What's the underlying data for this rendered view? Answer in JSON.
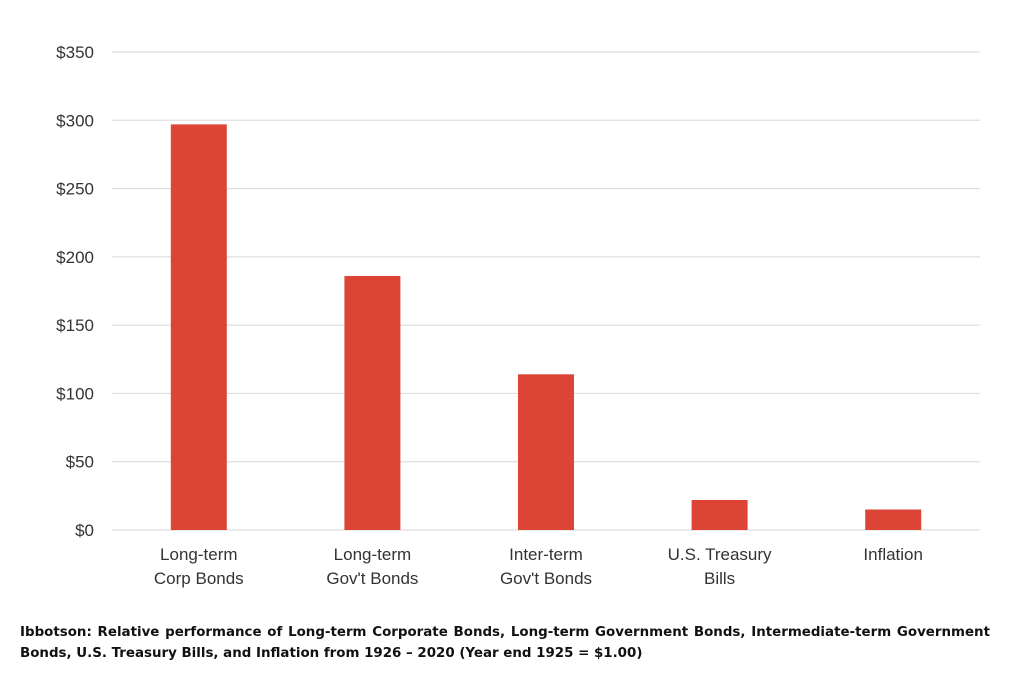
{
  "chart_data": {
    "type": "bar",
    "categories": [
      [
        "Long-term",
        "Corp Bonds"
      ],
      [
        "Long-term",
        "Gov't Bonds"
      ],
      [
        "Inter-term",
        "Gov't Bonds"
      ],
      [
        "U.S. Treasury",
        "Bills"
      ],
      [
        "Inflation"
      ]
    ],
    "values": [
      297,
      186,
      114,
      22,
      15
    ],
    "ylim": [
      0,
      350
    ],
    "y_ticks": [
      0,
      50,
      100,
      150,
      200,
      250,
      300,
      350
    ],
    "y_tick_prefix": "$",
    "bar_color": "#dc4535",
    "grid_color": "#dedede",
    "grid": true,
    "title": "",
    "xlabel": "",
    "ylabel": ""
  },
  "caption": "Ibbotson: Relative performance of Long-term Corporate Bonds, Long-term Government Bonds, Intermediate-term Government Bonds, U.S. Treasury Bills, and Inflation from 1926 – 2020 (Year end 1925 = $1.00)"
}
